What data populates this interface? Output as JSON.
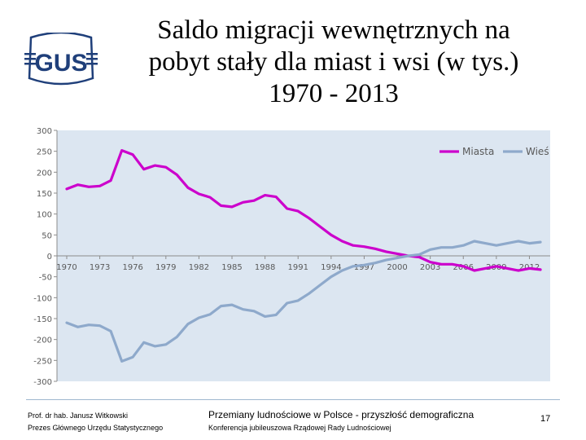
{
  "logo": {
    "text": "GUS",
    "color": "#1f3f7a"
  },
  "title": {
    "line1": "Saldo migracji wewnętrznych na",
    "line2": "pobyt stały dla miast i wsi (w tys.)",
    "line3": "1970 - 2013"
  },
  "chart_data": {
    "type": "line",
    "title": "Saldo migracji wewnętrznych na pobyt stały dla miast i wsi (w tys.) 1970 - 2013",
    "xlabel": "",
    "ylabel": "",
    "ylim": [
      -300,
      300
    ],
    "yticks": [
      300,
      250,
      200,
      150,
      100,
      50,
      0,
      -50,
      -100,
      -150,
      -200,
      -250,
      -300
    ],
    "ytick_labels": [
      "300",
      "250",
      "200",
      "150",
      "100",
      "50",
      "0",
      "-50",
      "-100",
      "-150",
      "-200",
      "-250",
      "-300"
    ],
    "xtick_labels": [
      "1970",
      "1973",
      "1976",
      "1979",
      "1982",
      "1985",
      "1988",
      "1991",
      "1994",
      "1997",
      "2000",
      "2003",
      "2006",
      "2009",
      "2012"
    ],
    "x": [
      1970,
      1971,
      1972,
      1973,
      1974,
      1975,
      1976,
      1977,
      1978,
      1979,
      1980,
      1981,
      1982,
      1983,
      1984,
      1985,
      1986,
      1987,
      1988,
      1989,
      1990,
      1991,
      1992,
      1993,
      1994,
      1995,
      1996,
      1997,
      1998,
      1999,
      2000,
      2001,
      2002,
      2003,
      2004,
      2005,
      2006,
      2007,
      2008,
      2009,
      2010,
      2011,
      2012,
      2013
    ],
    "grid": false,
    "legend": "top-right",
    "background": "#dce6f1",
    "series": [
      {
        "name": "Miasta",
        "color": "#cc00cc",
        "values": [
          160,
          170,
          165,
          167,
          180,
          252,
          242,
          207,
          216,
          212,
          194,
          163,
          148,
          140,
          120,
          117,
          128,
          132,
          145,
          141,
          113,
          107,
          90,
          70,
          50,
          35,
          25,
          22,
          17,
          10,
          5,
          0,
          -3,
          -15,
          -20,
          -20,
          -25,
          -35,
          -30,
          -25,
          -30,
          -35,
          -30,
          -33
        ]
      },
      {
        "name": "Wieś",
        "color": "#8ea9cb",
        "values": [
          -160,
          -170,
          -165,
          -167,
          -180,
          -252,
          -242,
          -207,
          -216,
          -212,
          -194,
          -163,
          -148,
          -140,
          -120,
          -117,
          -128,
          -132,
          -145,
          -141,
          -113,
          -107,
          -90,
          -70,
          -50,
          -35,
          -25,
          -22,
          -17,
          -10,
          -5,
          0,
          3,
          15,
          20,
          20,
          25,
          35,
          30,
          25,
          30,
          35,
          30,
          33
        ]
      }
    ]
  },
  "footer": {
    "author_line1": "Prof. dr hab. Janusz Witkowski",
    "author_line2": "Prezes Głównego Urzędu Statystycznego",
    "main_title": "Przemiany ludnościowe w Polsce -  przyszłość demograficzna",
    "subtitle": "Konferencja jubileuszowa Rządowej Rady Ludnościowej",
    "page_number": "17"
  }
}
